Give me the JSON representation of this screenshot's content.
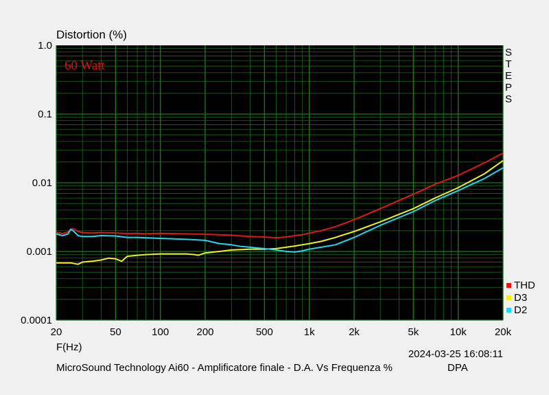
{
  "chart_data": {
    "type": "line",
    "title": "Distortion (%)",
    "xlabel": "F(Hz)",
    "ylabel": "Distortion (%)",
    "x_scale": "log",
    "y_scale": "log",
    "xlim": [
      20,
      20000
    ],
    "ylim": [
      0.0001,
      1.0
    ],
    "x_ticks": [
      20,
      50,
      100,
      200,
      500,
      1000,
      2000,
      5000,
      10000,
      20000
    ],
    "x_tick_labels": [
      "20",
      "50",
      "100",
      "200",
      "500",
      "1k",
      "2k",
      "5k",
      "10k",
      "20k"
    ],
    "y_ticks": [
      0.0001,
      0.001,
      0.01,
      0.1,
      1.0
    ],
    "y_tick_labels": [
      "0.0001",
      "0.001",
      "0.01",
      "0.1",
      "1.0"
    ],
    "grid": true,
    "background": "#000000",
    "grid_color": "#1f7a1f",
    "annotation": "60 Watt",
    "annotation_color": "#e01010",
    "side_label": [
      "S",
      "T",
      "E",
      "P",
      "S"
    ],
    "legend_position": "bottom-right",
    "series": [
      {
        "name": "THD",
        "color": "#e01818",
        "points": [
          [
            20,
            0.0019
          ],
          [
            22,
            0.00182
          ],
          [
            24,
            0.00192
          ],
          [
            25,
            0.0021
          ],
          [
            26,
            0.00215
          ],
          [
            28,
            0.00195
          ],
          [
            30,
            0.00188
          ],
          [
            35,
            0.00185
          ],
          [
            40,
            0.00188
          ],
          [
            50,
            0.00185
          ],
          [
            60,
            0.00182
          ],
          [
            70,
            0.00183
          ],
          [
            80,
            0.0018
          ],
          [
            90,
            0.00182
          ],
          [
            100,
            0.00183
          ],
          [
            120,
            0.00182
          ],
          [
            150,
            0.0018
          ],
          [
            200,
            0.00178
          ],
          [
            250,
            0.00175
          ],
          [
            300,
            0.00172
          ],
          [
            350,
            0.00168
          ],
          [
            400,
            0.00165
          ],
          [
            500,
            0.00162
          ],
          [
            600,
            0.00158
          ],
          [
            700,
            0.00162
          ],
          [
            800,
            0.0017
          ],
          [
            900,
            0.00175
          ],
          [
            1000,
            0.00185
          ],
          [
            1200,
            0.002
          ],
          [
            1500,
            0.0023
          ],
          [
            2000,
            0.0029
          ],
          [
            3000,
            0.0042
          ],
          [
            5000,
            0.0068
          ],
          [
            7000,
            0.0095
          ],
          [
            10000,
            0.0128
          ],
          [
            15000,
            0.0195
          ],
          [
            20000,
            0.027
          ]
        ]
      },
      {
        "name": "D3",
        "color": "#f0f020",
        "points": [
          [
            20,
            0.00068
          ],
          [
            25,
            0.00068
          ],
          [
            28,
            0.00065
          ],
          [
            30,
            0.0007
          ],
          [
            35,
            0.00072
          ],
          [
            40,
            0.00075
          ],
          [
            45,
            0.0008
          ],
          [
            50,
            0.00078
          ],
          [
            55,
            0.00072
          ],
          [
            60,
            0.00085
          ],
          [
            70,
            0.00088
          ],
          [
            80,
            0.0009
          ],
          [
            100,
            0.00092
          ],
          [
            150,
            0.00092
          ],
          [
            170,
            0.0009
          ],
          [
            180,
            0.00088
          ],
          [
            200,
            0.00095
          ],
          [
            250,
            0.001
          ],
          [
            300,
            0.00105
          ],
          [
            400,
            0.00108
          ],
          [
            500,
            0.00108
          ],
          [
            600,
            0.0011
          ],
          [
            700,
            0.00115
          ],
          [
            800,
            0.0012
          ],
          [
            900,
            0.00125
          ],
          [
            1000,
            0.0013
          ],
          [
            1200,
            0.0014
          ],
          [
            1500,
            0.0016
          ],
          [
            2000,
            0.00195
          ],
          [
            3000,
            0.0027
          ],
          [
            5000,
            0.0042
          ],
          [
            7000,
            0.006
          ],
          [
            10000,
            0.0085
          ],
          [
            15000,
            0.0135
          ],
          [
            20000,
            0.021
          ]
        ]
      },
      {
        "name": "D2",
        "color": "#20d8f0",
        "points": [
          [
            20,
            0.0018
          ],
          [
            22,
            0.0017
          ],
          [
            24,
            0.0018
          ],
          [
            25,
            0.0021
          ],
          [
            26,
            0.002
          ],
          [
            28,
            0.0017
          ],
          [
            30,
            0.00165
          ],
          [
            35,
            0.00165
          ],
          [
            40,
            0.0017
          ],
          [
            50,
            0.00168
          ],
          [
            60,
            0.0016
          ],
          [
            70,
            0.0016
          ],
          [
            80,
            0.00158
          ],
          [
            100,
            0.00155
          ],
          [
            150,
            0.0015
          ],
          [
            200,
            0.00145
          ],
          [
            250,
            0.0013
          ],
          [
            300,
            0.00125
          ],
          [
            350,
            0.00118
          ],
          [
            400,
            0.00115
          ],
          [
            500,
            0.0011
          ],
          [
            600,
            0.00105
          ],
          [
            700,
            0.001
          ],
          [
            800,
            0.00098
          ],
          [
            900,
            0.00102
          ],
          [
            1000,
            0.00108
          ],
          [
            1200,
            0.00115
          ],
          [
            1500,
            0.00125
          ],
          [
            2000,
            0.0016
          ],
          [
            3000,
            0.0024
          ],
          [
            5000,
            0.0038
          ],
          [
            7000,
            0.0055
          ],
          [
            10000,
            0.0077
          ],
          [
            15000,
            0.0115
          ],
          [
            20000,
            0.0165
          ]
        ]
      }
    ]
  },
  "footer": {
    "timestamp": "2024-03-25 16:08:11",
    "caption": "MicroSound Technology Ai60 - Amplificatore finale - D.A. Vs Frequenza %",
    "tag": "DPA"
  }
}
